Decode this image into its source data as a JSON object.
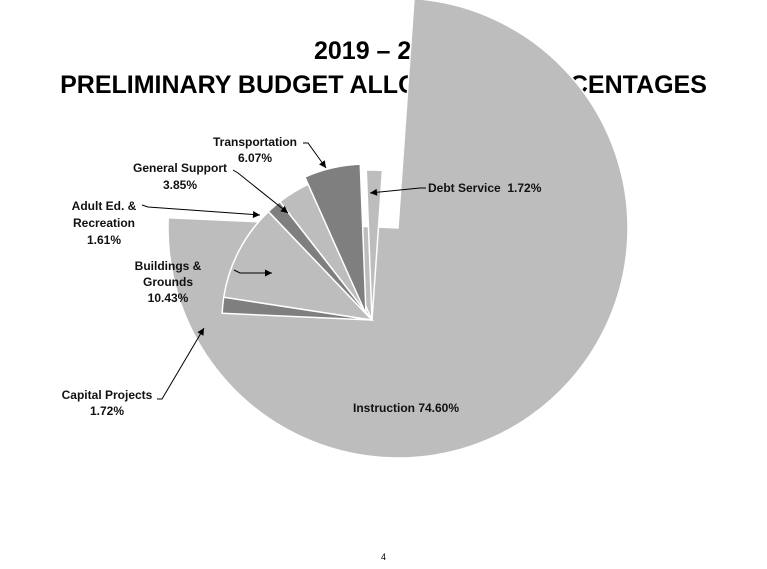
{
  "chart_data": {
    "type": "pie",
    "title_lines": [
      "2019 – 2020",
      "PRELIMINARY BUDGET ALLOCATION PERCENTAGES"
    ],
    "exploded": true,
    "slices": [
      {
        "name": "Instruction",
        "value": 74.6,
        "value_label": "74.60%",
        "label_lines": [
          "Instruction 74.60%"
        ],
        "color": "#bdbdbd"
      },
      {
        "name": "Capital Projects",
        "value": 1.72,
        "value_label": "1.72%",
        "label_lines": [
          "Capital Projects",
          "1.72%"
        ],
        "color": "#7f7f7f"
      },
      {
        "name": "Buildings & Grounds",
        "value": 10.43,
        "value_label": "10.43%",
        "label_lines": [
          "Buildings &",
          "Grounds",
          "10.43%"
        ],
        "color": "#bdbdbd"
      },
      {
        "name": "Adult Ed. & Recreation",
        "value": 1.61,
        "value_label": "1.61%",
        "label_lines": [
          "Adult Ed. &",
          "Recreation",
          "1.61%"
        ],
        "color": "#7f7f7f"
      },
      {
        "name": "General Support",
        "value": 3.85,
        "value_label": "3.85%",
        "label_lines": [
          "General Support",
          "3.85%"
        ],
        "color": "#bdbdbd"
      },
      {
        "name": "Transportation",
        "value": 6.07,
        "value_label": "6.07%",
        "label_lines": [
          "Transportation",
          "6.07%"
        ],
        "color": "#7f7f7f"
      },
      {
        "name": "Debt Service",
        "value": 1.72,
        "value_label": "1.72%",
        "label_lines": [
          "Debt Service  1.72%"
        ],
        "color": "#bdbdbd"
      }
    ]
  },
  "page_number": "4"
}
